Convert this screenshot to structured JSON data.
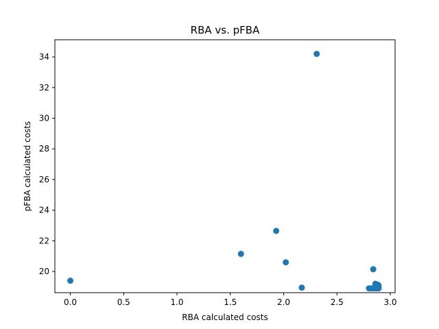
{
  "chart_data": {
    "type": "scatter",
    "title": "RBA vs. pFBA",
    "xlabel": "RBA calculated costs",
    "ylabel": "pFBA calculated costs",
    "xlim": [
      -0.145,
      3.045
    ],
    "ylim": [
      18.62,
      35.12
    ],
    "x_ticks": [
      0.0,
      0.5,
      1.0,
      1.5,
      2.0,
      2.5,
      3.0
    ],
    "x_tick_labels": [
      "0.0",
      "0.5",
      "1.0",
      "1.5",
      "2.0",
      "2.5",
      "3.0"
    ],
    "y_ticks": [
      20,
      22,
      24,
      26,
      28,
      30,
      32,
      34
    ],
    "y_tick_labels": [
      "20",
      "22",
      "24",
      "26",
      "28",
      "30",
      "32",
      "34"
    ],
    "grid": false,
    "marker_color": "#1f77b4",
    "series": [
      {
        "points": [
          [
            0.0,
            19.4
          ],
          [
            1.6,
            21.15
          ],
          [
            1.93,
            22.65
          ],
          [
            2.02,
            20.6
          ],
          [
            2.17,
            18.95
          ],
          [
            2.31,
            34.2
          ],
          [
            2.8,
            18.9
          ],
          [
            2.82,
            18.9
          ],
          [
            2.84,
            20.15
          ],
          [
            2.84,
            18.9
          ],
          [
            2.85,
            18.95
          ],
          [
            2.86,
            19.2
          ],
          [
            2.86,
            18.9
          ],
          [
            2.87,
            19.05
          ],
          [
            2.87,
            18.9
          ],
          [
            2.88,
            18.95
          ],
          [
            2.88,
            19.15
          ],
          [
            2.89,
            18.9
          ],
          [
            2.89,
            19.1
          ],
          [
            2.89,
            18.95
          ]
        ]
      }
    ]
  }
}
